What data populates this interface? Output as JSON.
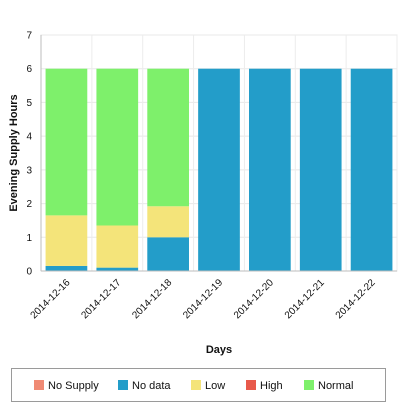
{
  "chart_data": {
    "type": "bar",
    "stacked": true,
    "categories": [
      "2014-12-16",
      "2014-12-17",
      "2014-12-18",
      "2014-12-19",
      "2014-12-20",
      "2014-12-21",
      "2014-12-22"
    ],
    "series": [
      {
        "name": "No Supply",
        "color": "#f08a74",
        "values": [
          0,
          0,
          0,
          0,
          0,
          0,
          0
        ]
      },
      {
        "name": "No data",
        "color": "#239dc9",
        "values": [
          0.15,
          0.1,
          1.0,
          6.0,
          6.0,
          6.0,
          6.0
        ]
      },
      {
        "name": "Low",
        "color": "#f4e47a",
        "values": [
          1.5,
          1.25,
          0.92,
          0,
          0,
          0,
          0
        ]
      },
      {
        "name": "High",
        "color": "#e8594b",
        "values": [
          0,
          0,
          0,
          0,
          0,
          0,
          0
        ]
      },
      {
        "name": "Normal",
        "color": "#7ef06b",
        "values": [
          4.35,
          4.65,
          4.08,
          0,
          0,
          0,
          0
        ]
      }
    ],
    "xlabel": "Days",
    "ylabel": "Evening Supply Hours",
    "ylim": [
      0,
      7
    ],
    "yticks": [
      0,
      1,
      2,
      3,
      4,
      5,
      6,
      7
    ],
    "grid": true,
    "legend_position": "bottom"
  }
}
